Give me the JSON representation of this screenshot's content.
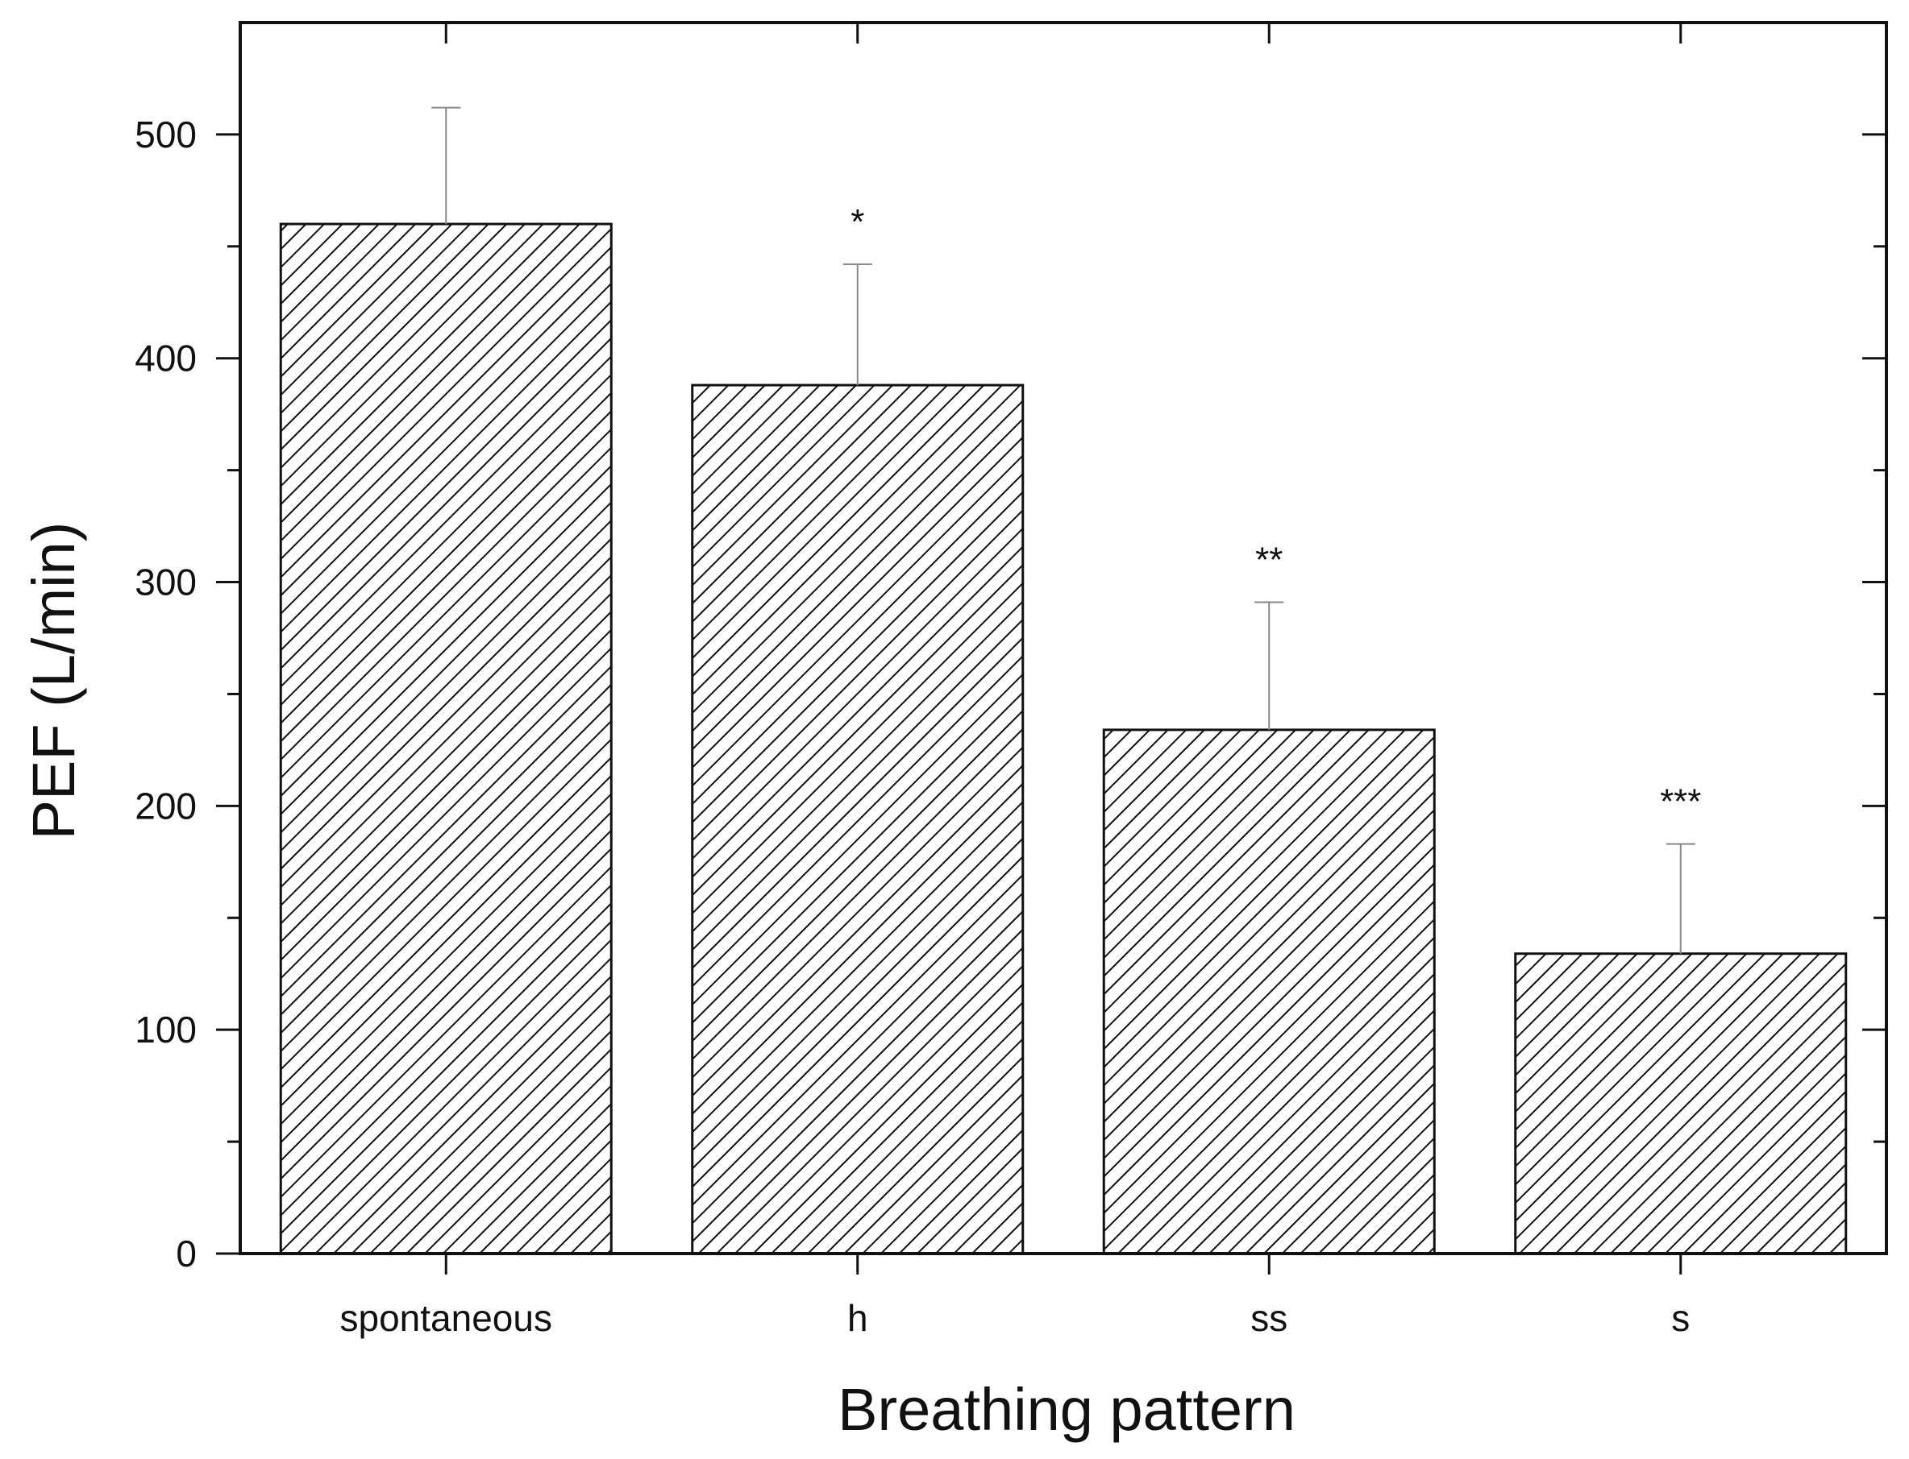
{
  "chart_data": {
    "type": "bar",
    "title": "",
    "xlabel": "Breathing pattern",
    "ylabel": "PEF (L/min)",
    "categories": [
      "spontaneous",
      "h",
      "ss",
      "s"
    ],
    "values": [
      460,
      388,
      234,
      134
    ],
    "errors": [
      52,
      54,
      57,
      49
    ],
    "significance": [
      "",
      "*",
      "**",
      "***"
    ],
    "ylim": [
      0,
      550
    ],
    "yticks": [
      0,
      100,
      200,
      300,
      400,
      500
    ],
    "yminor": [
      50,
      150,
      250,
      350,
      450
    ],
    "grid": false,
    "legend": "none",
    "bar_pattern": "diagonal hatch",
    "colors": {
      "bar_fill": "#ffffff",
      "hatch": "#111111",
      "axis": "#111111",
      "error_bar": "#888888"
    }
  }
}
